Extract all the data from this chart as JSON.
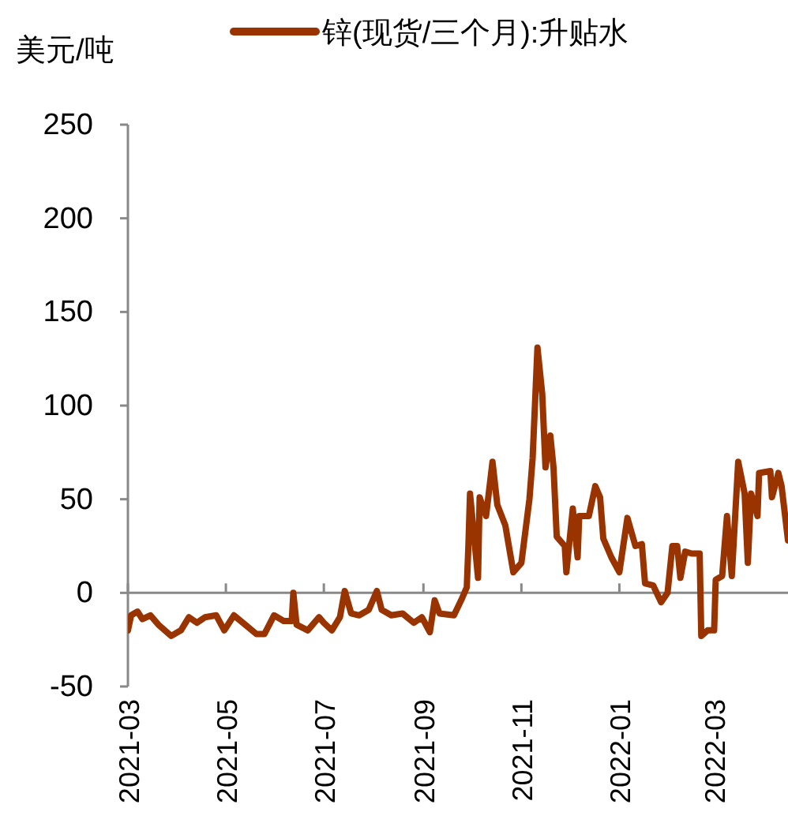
{
  "chart_data": {
    "type": "line",
    "ylabel": "美元/吨",
    "legend": "top",
    "marker": "none",
    "line_style": "solid",
    "xlim": [
      "2021-03-01",
      "2022-04-16"
    ],
    "xticks": [
      {
        "value": "2021-03-01",
        "label": "2021-03"
      },
      {
        "value": "2021-05-01",
        "label": "2021-05"
      },
      {
        "value": "2021-07-01",
        "label": "2021-07"
      },
      {
        "value": "2021-09-01",
        "label": "2021-09"
      },
      {
        "value": "2021-11-01",
        "label": "2021-11"
      },
      {
        "value": "2022-01-01",
        "label": "2022-01"
      },
      {
        "value": "2022-03-01",
        "label": "2022-03"
      }
    ],
    "ylim": [
      -50,
      250
    ],
    "yticks": [
      -50,
      0,
      50,
      100,
      150,
      200,
      250
    ],
    "x": [
      "2021-03-01",
      "2021-03-03",
      "2021-03-07",
      "2021-03-10",
      "2021-03-15",
      "2021-03-20",
      "2021-03-28",
      "2021-04-03",
      "2021-04-08",
      "2021-04-13",
      "2021-04-18",
      "2021-04-25",
      "2021-04-30",
      "2021-05-06",
      "2021-05-13",
      "2021-05-20",
      "2021-05-25",
      "2021-05-31",
      "2021-06-06",
      "2021-06-11",
      "2021-06-12",
      "2021-06-14",
      "2021-06-21",
      "2021-06-28",
      "2021-07-01",
      "2021-07-06",
      "2021-07-11",
      "2021-07-14",
      "2021-07-18",
      "2021-07-23",
      "2021-07-29",
      "2021-08-03",
      "2021-08-06",
      "2021-08-12",
      "2021-08-19",
      "2021-08-26",
      "2021-08-31",
      "2021-09-05",
      "2021-09-08",
      "2021-09-11",
      "2021-09-20",
      "2021-09-25",
      "2021-09-28",
      "2021-09-29",
      "2021-09-30",
      "2021-10-05",
      "2021-10-06",
      "2021-10-10",
      "2021-10-14",
      "2021-10-17",
      "2021-10-22",
      "2021-10-27",
      "2021-11-01",
      "2021-11-06",
      "2021-11-08",
      "2021-11-11",
      "2021-11-14",
      "2021-11-16",
      "2021-11-19",
      "2021-11-21",
      "2021-11-23",
      "2021-11-28",
      "2021-11-29",
      "2021-12-03",
      "2021-12-06",
      "2021-12-07",
      "2021-12-13",
      "2021-12-17",
      "2021-12-20",
      "2021-12-22",
      "2021-12-27",
      "2022-01-01",
      "2022-01-06",
      "2022-01-11",
      "2022-01-15",
      "2022-01-17",
      "2022-01-22",
      "2022-01-27",
      "2022-01-31",
      "2022-02-03",
      "2022-02-06",
      "2022-02-08",
      "2022-02-11",
      "2022-02-15",
      "2022-02-20",
      "2022-02-21",
      "2022-02-25",
      "2022-03-01",
      "2022-03-02",
      "2022-03-06",
      "2022-03-09",
      "2022-03-12",
      "2022-03-16",
      "2022-03-20",
      "2022-03-22",
      "2022-03-24",
      "2022-03-28",
      "2022-03-29",
      "2022-04-05",
      "2022-04-06",
      "2022-04-10",
      "2022-04-12",
      "2022-04-16"
    ],
    "series": [
      {
        "name": "锌(现货/三个月):升贴水",
        "color": "#993300",
        "values": [
          -20,
          -12,
          -10,
          -14,
          -12,
          -17,
          -23,
          -20,
          -13,
          -16,
          -13,
          -12,
          -20,
          -12,
          -17,
          -22,
          -22,
          -12,
          -15,
          -15,
          0,
          -17,
          -20,
          -13,
          -16,
          -20,
          -13,
          1,
          -11,
          -12,
          -9,
          1,
          -9,
          -12,
          -11,
          -16,
          -13,
          -21,
          -4,
          -11,
          -12,
          -3,
          3,
          25,
          53,
          8,
          51,
          41,
          70,
          47,
          36,
          11,
          16,
          50,
          72,
          131,
          106,
          67,
          84,
          67,
          30,
          25,
          11,
          45,
          19,
          41,
          41,
          57,
          51,
          29,
          19,
          11,
          40,
          25,
          26,
          5,
          4,
          -5,
          0,
          25,
          25,
          8,
          22,
          21,
          21,
          -23,
          -20,
          -20,
          7,
          9,
          41,
          9,
          70,
          53,
          16,
          53,
          41,
          64,
          65,
          51,
          64,
          57,
          28
        ]
      }
    ]
  }
}
